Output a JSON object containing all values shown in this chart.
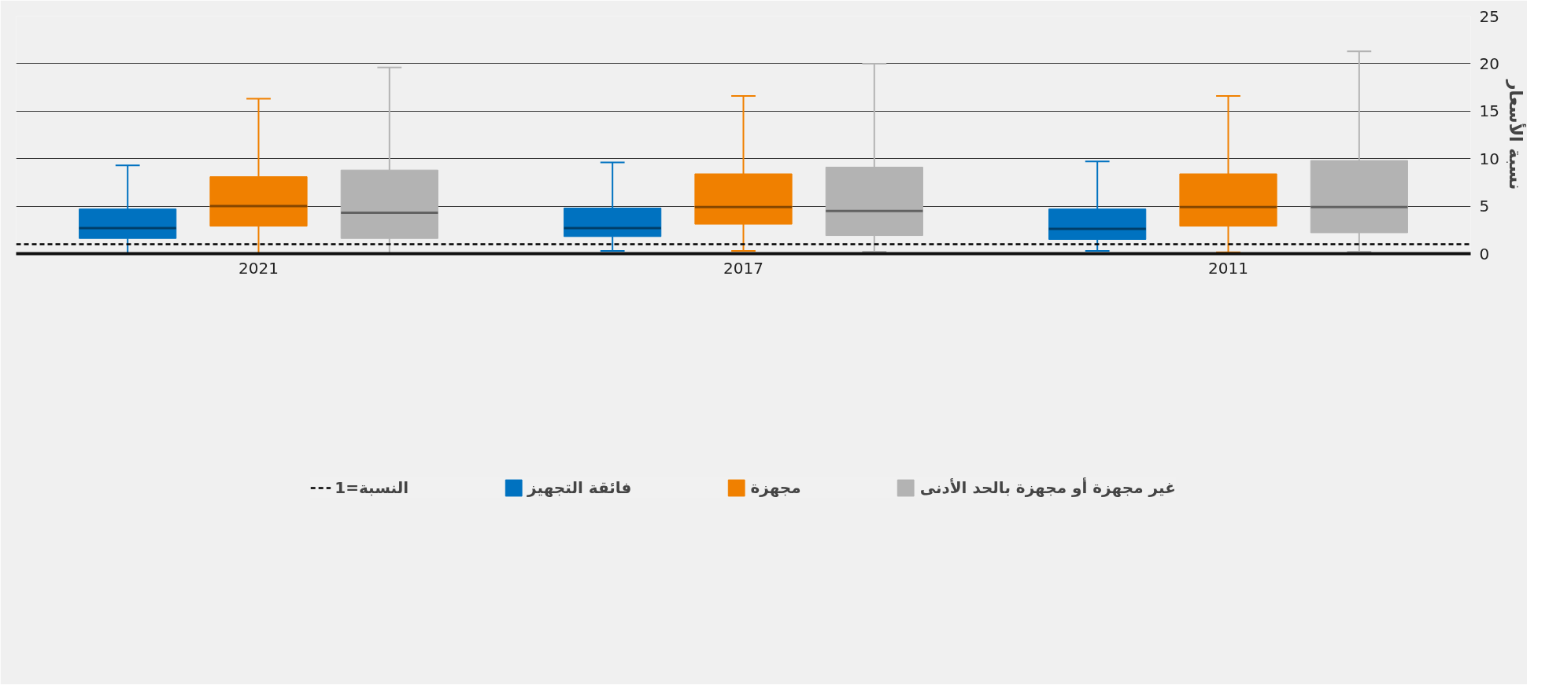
{
  "chart_data": {
    "type": "box",
    "categories": [
      "2021",
      "2017",
      "2011"
    ],
    "ylabel": "نسبة الأسعار",
    "ylim": [
      0,
      25
    ],
    "yticks": [
      0,
      5,
      10,
      15,
      20,
      25
    ],
    "grid": "y",
    "legend": "bottom",
    "series": [
      {
        "name": "فائقة التجهيز",
        "color": "#0072c0",
        "boxes": [
          {
            "low": 0,
            "q1": 1.6,
            "median": 2.7,
            "q3": 4.7,
            "high": 9.3
          },
          {
            "low": 0.3,
            "q1": 1.8,
            "median": 2.7,
            "q3": 4.8,
            "high": 9.6
          },
          {
            "low": 0.3,
            "q1": 1.5,
            "median": 2.6,
            "q3": 4.7,
            "high": 9.7
          }
        ]
      },
      {
        "name": "مجهزة",
        "color": "#f08000",
        "boxes": [
          {
            "low": 0,
            "q1": 2.9,
            "median": 5.0,
            "q3": 8.1,
            "high": 16.3
          },
          {
            "low": 0.3,
            "q1": 3.1,
            "median": 4.9,
            "q3": 8.4,
            "high": 16.6
          },
          {
            "low": 0.15,
            "q1": 2.9,
            "median": 4.9,
            "q3": 8.4,
            "high": 16.6
          }
        ]
      },
      {
        "name": "غير مجهزة أو مجهزة بالحد الأدنى",
        "color": "#b3b3b3",
        "boxes": [
          {
            "low": 0,
            "q1": 1.6,
            "median": 4.3,
            "q3": 8.8,
            "high": 19.6
          },
          {
            "low": 0.2,
            "q1": 1.9,
            "median": 4.5,
            "q3": 9.1,
            "high": 20.0
          },
          {
            "low": 0.2,
            "q1": 2.2,
            "median": 4.9,
            "q3": 9.8,
            "high": 21.3
          }
        ]
      }
    ],
    "ref_lines": [
      {
        "axis": "y",
        "value": 1,
        "label": "النسبة=1",
        "line_style": "dashed",
        "color": "#000000"
      }
    ]
  }
}
